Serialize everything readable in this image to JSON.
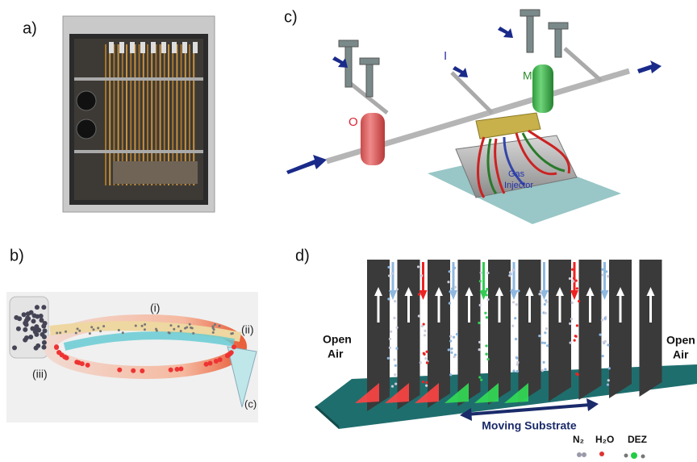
{
  "panel_a": {
    "label": "a)"
  },
  "panel_b": {
    "label": "b)",
    "stages": [
      "(i)",
      "(ii)",
      "(iii)",
      "(c)"
    ]
  },
  "panel_c": {
    "label": "c)",
    "precursors": [
      "O",
      "I",
      "M"
    ],
    "injector": [
      "Gas",
      "Injector"
    ]
  },
  "panel_d": {
    "label": "d)",
    "left": [
      "Open",
      "Air"
    ],
    "right": [
      "Open",
      "Air"
    ],
    "substrate": "Moving Substrate",
    "legend": [
      "N₂",
      "H₂O",
      "DEZ"
    ]
  }
}
